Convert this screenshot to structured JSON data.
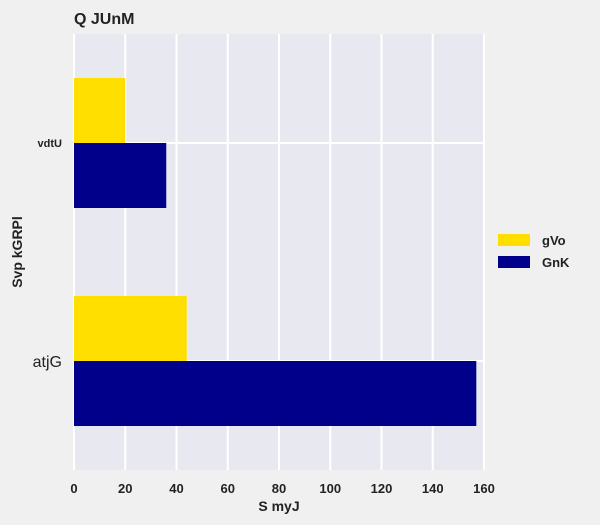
{
  "chart_data": {
    "type": "bar",
    "orientation": "horizontal",
    "title": "Q JUnM",
    "xlabel": "S  myJ",
    "ylabel": "Svp kGRPl",
    "categories": [
      "vdtU",
      "atjG"
    ],
    "series": [
      {
        "name": "gVo",
        "color": "#FFDF00",
        "values": [
          20,
          44
        ]
      },
      {
        "name": "GnK",
        "color": "#00008B",
        "values": [
          36,
          157
        ]
      }
    ],
    "xlim": [
      0,
      160
    ],
    "xticks": [
      0,
      20,
      40,
      60,
      80,
      100,
      120,
      140,
      160
    ],
    "grid": true,
    "legend_position": "right",
    "background_color": "#E8E8F0",
    "page_color": "#F0F0F0"
  }
}
